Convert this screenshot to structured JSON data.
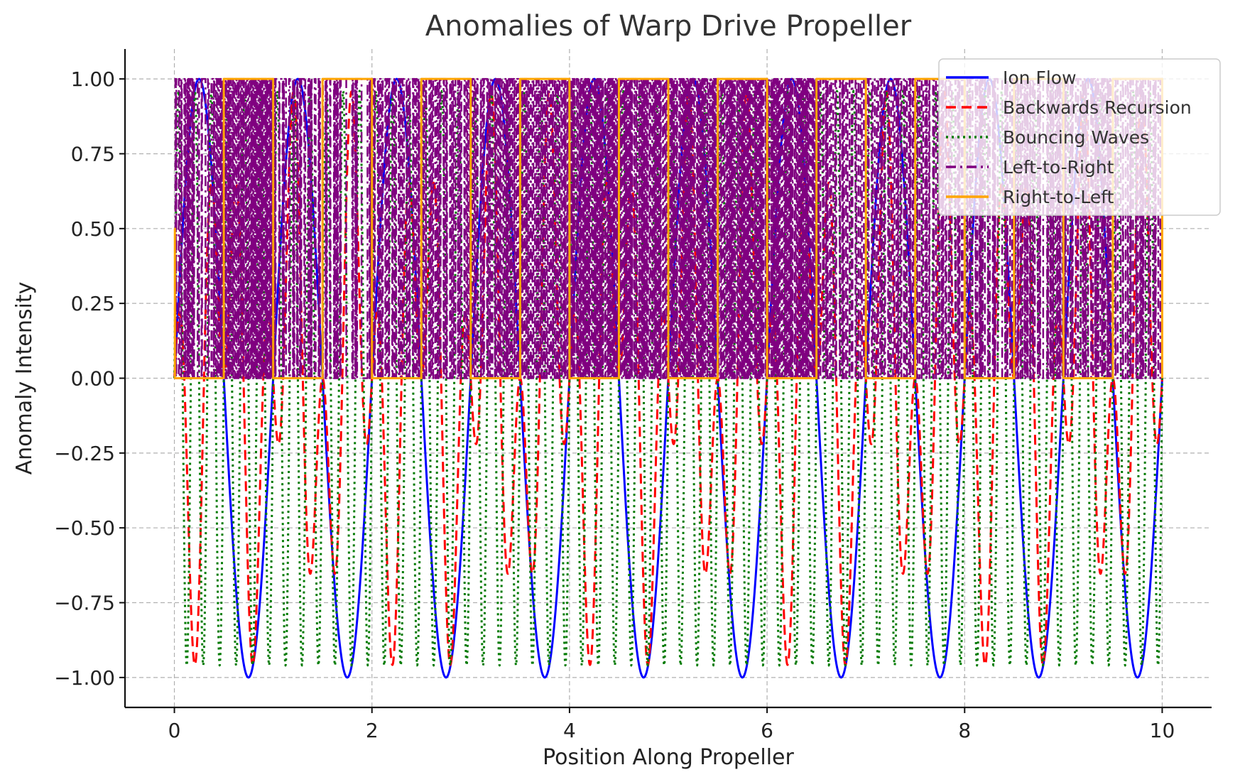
{
  "chart_data": {
    "type": "line",
    "title": "Anomalies of Warp Drive Propeller",
    "xlabel": "Position Along Propeller",
    "ylabel": "Anomaly Intensity",
    "xlim": [
      -0.5,
      10.5
    ],
    "ylim": [
      -1.1,
      1.1
    ],
    "xticks": [
      0,
      2,
      4,
      6,
      8,
      10
    ],
    "xtick_labels": [
      "0",
      "2",
      "4",
      "6",
      "8",
      "10"
    ],
    "yticks": [
      -1.0,
      -0.75,
      -0.5,
      -0.25,
      0.0,
      0.25,
      0.5,
      0.75,
      1.0
    ],
    "ytick_labels": [
      "−1.00",
      "−0.75",
      "−0.50",
      "−0.25",
      "0.00",
      "0.25",
      "0.50",
      "0.75",
      "1.00"
    ],
    "grid": true,
    "legend_position": "top-right",
    "x_range": [
      0,
      10
    ],
    "series": [
      {
        "name": "Ion Flow",
        "color": "#0000ff",
        "style": "solid",
        "function": "sin(2*pi*x)"
      },
      {
        "name": "Backwards Recursion",
        "color": "#ff0000",
        "style": "dashed",
        "function": "sin(2*pi*x)*cos(5*pi*x)"
      },
      {
        "name": "Bouncing Waves",
        "color": "#007a00",
        "style": "dotted",
        "function": "sin(12*pi*x) with 0.96 amplitude"
      },
      {
        "name": "Left-to-Right",
        "color": "#800080",
        "style": "dashdot",
        "function": "square wave: 1 on [0,1) mod 2? no - sign(sin(200*pi*x)) >=0"
      },
      {
        "name": "Right-to-Left",
        "color": "#ffa500",
        "style": "solid",
        "function": "square wave period 1, high on [0.5,1)"
      }
    ]
  }
}
